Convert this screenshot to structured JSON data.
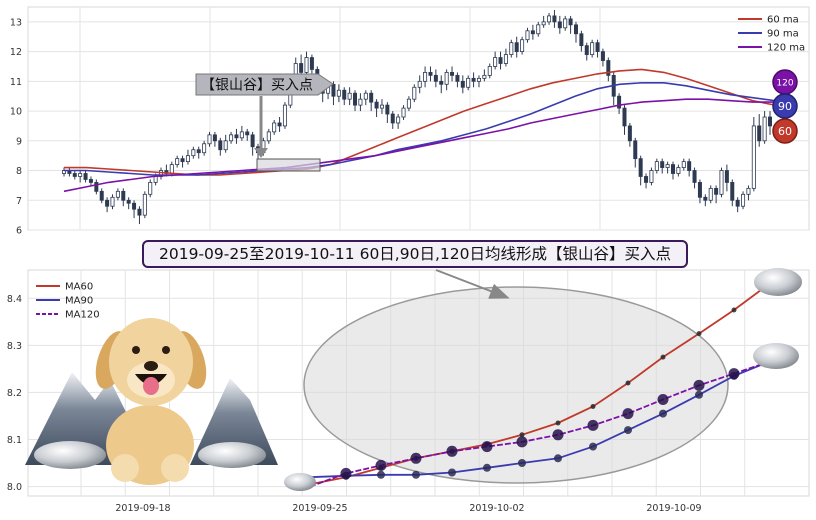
{
  "top_chart": {
    "legend": [
      {
        "label": "60 ma",
        "color": "#c0392b"
      },
      {
        "label": "90 ma",
        "color": "#3b3bb0"
      },
      {
        "label": "120 ma",
        "color": "#7b12a8"
      }
    ],
    "callout_label": "【银山谷】买入点",
    "badges": [
      "120",
      "90",
      "60"
    ]
  },
  "banner": "2019-09-25至2019-10-11 60日,90日,120日均线形成【银山谷】买入点",
  "bottom_chart": {
    "legend": [
      {
        "label": "MA60",
        "color": "#c0392b"
      },
      {
        "label": "MA90",
        "color": "#3b3bb0"
      },
      {
        "label": "MA120",
        "color": "#7b12a8"
      }
    ],
    "x_tick_labels": [
      "2019-09-18",
      "2019-09-25",
      "2019-10-02",
      "2019-10-09"
    ]
  },
  "chart_data": [
    {
      "type": "candlestick",
      "ylim": [
        6,
        13.5
      ],
      "yticks": [
        6,
        7,
        8,
        9,
        10,
        11,
        12,
        13
      ],
      "grid": true,
      "legend_placement": "top-right",
      "series": [
        {
          "name": "60 ma",
          "color": "#c0392b",
          "values": [
            8.1,
            8.1,
            8.05,
            8.0,
            7.95,
            7.9,
            7.85,
            7.85,
            7.9,
            7.95,
            8.0,
            8.05,
            8.2,
            8.5,
            8.8,
            9.1,
            9.4,
            9.7,
            10.0,
            10.25,
            10.5,
            10.75,
            10.95,
            11.1,
            11.25,
            11.35,
            11.4,
            11.3,
            11.1,
            10.85,
            10.6,
            10.35,
            10.2
          ]
        },
        {
          "name": "90 ma",
          "color": "#3b3bb0",
          "values": [
            8.0,
            8.0,
            7.95,
            7.9,
            7.85,
            7.85,
            7.85,
            7.9,
            7.95,
            8.0,
            8.05,
            8.1,
            8.2,
            8.35,
            8.5,
            8.7,
            8.85,
            9.0,
            9.2,
            9.4,
            9.65,
            9.9,
            10.2,
            10.5,
            10.75,
            10.9,
            10.95,
            10.95,
            10.85,
            10.7,
            10.55,
            10.45,
            10.35
          ]
        },
        {
          "name": "120 ma",
          "color": "#7b12a8",
          "values": [
            7.3,
            7.45,
            7.6,
            7.7,
            7.8,
            7.85,
            7.9,
            7.95,
            8.0,
            8.05,
            8.1,
            8.2,
            8.3,
            8.4,
            8.5,
            8.65,
            8.8,
            8.95,
            9.1,
            9.25,
            9.4,
            9.6,
            9.75,
            9.9,
            10.05,
            10.2,
            10.3,
            10.35,
            10.4,
            10.4,
            10.35,
            10.3,
            10.3
          ]
        }
      ],
      "candles": [
        [
          7.9,
          8.0,
          7.8,
          8.1
        ],
        [
          8.0,
          7.9,
          7.8,
          8.1
        ],
        [
          7.9,
          7.8,
          7.7,
          8.0
        ],
        [
          7.8,
          7.9,
          7.6,
          8.0
        ],
        [
          7.9,
          7.7,
          7.6,
          8.0
        ],
        [
          7.7,
          7.6,
          7.5,
          7.8
        ],
        [
          7.6,
          7.3,
          7.2,
          7.7
        ],
        [
          7.3,
          7.0,
          6.9,
          7.4
        ],
        [
          7.0,
          6.8,
          6.6,
          7.1
        ],
        [
          6.8,
          7.1,
          6.7,
          7.2
        ],
        [
          7.1,
          7.3,
          7.0,
          7.4
        ],
        [
          7.3,
          7.0,
          6.8,
          7.4
        ],
        [
          7.0,
          6.9,
          6.7,
          7.1
        ],
        [
          6.9,
          6.7,
          6.4,
          7.0
        ],
        [
          6.7,
          6.5,
          6.2,
          6.8
        ],
        [
          6.5,
          7.2,
          6.4,
          7.3
        ],
        [
          7.2,
          7.6,
          7.1,
          7.7
        ],
        [
          7.6,
          7.8,
          7.5,
          7.9
        ],
        [
          7.8,
          8.0,
          7.7,
          8.1
        ],
        [
          8.0,
          7.9,
          7.8,
          8.2
        ],
        [
          7.9,
          8.2,
          7.8,
          8.3
        ],
        [
          8.2,
          8.4,
          8.1,
          8.5
        ],
        [
          8.4,
          8.3,
          8.1,
          8.5
        ],
        [
          8.3,
          8.5,
          8.2,
          8.7
        ],
        [
          8.5,
          8.7,
          8.4,
          8.8
        ],
        [
          8.7,
          8.6,
          8.4,
          8.8
        ],
        [
          8.6,
          8.9,
          8.5,
          9.0
        ],
        [
          8.9,
          9.2,
          8.8,
          9.3
        ],
        [
          9.2,
          9.0,
          8.8,
          9.3
        ],
        [
          9.0,
          8.7,
          8.5,
          9.1
        ],
        [
          8.7,
          9.0,
          8.6,
          9.2
        ],
        [
          9.0,
          9.2,
          8.9,
          9.3
        ],
        [
          9.2,
          9.1,
          8.9,
          9.4
        ],
        [
          9.1,
          9.3,
          9.0,
          9.5
        ],
        [
          9.3,
          9.2,
          9.0,
          9.4
        ],
        [
          9.2,
          8.8,
          8.5,
          9.3
        ],
        [
          8.8,
          8.6,
          8.4,
          8.9
        ],
        [
          8.6,
          9.0,
          8.5,
          9.1
        ],
        [
          9.0,
          9.3,
          8.9,
          9.4
        ],
        [
          9.3,
          9.6,
          9.2,
          9.7
        ],
        [
          9.6,
          9.5,
          9.3,
          9.8
        ],
        [
          9.5,
          10.2,
          9.4,
          10.3
        ],
        [
          10.2,
          10.9,
          10.1,
          11.0
        ],
        [
          10.9,
          11.6,
          10.8,
          11.8
        ],
        [
          11.6,
          11.3,
          11.0,
          11.9
        ],
        [
          11.3,
          11.8,
          11.2,
          12.0
        ],
        [
          11.8,
          11.4,
          11.0,
          11.9
        ],
        [
          11.4,
          10.8,
          10.6,
          11.5
        ],
        [
          10.8,
          10.6,
          10.3,
          10.9
        ],
        [
          10.6,
          10.9,
          10.4,
          11.0
        ],
        [
          10.9,
          10.5,
          10.2,
          11.0
        ],
        [
          10.5,
          10.7,
          10.3,
          10.9
        ],
        [
          10.7,
          10.4,
          10.2,
          10.8
        ],
        [
          10.4,
          10.6,
          10.2,
          10.8
        ],
        [
          10.6,
          10.2,
          10.0,
          10.7
        ],
        [
          10.2,
          10.4,
          10.0,
          10.6
        ],
        [
          10.4,
          10.6,
          10.2,
          10.7
        ],
        [
          10.6,
          10.3,
          10.0,
          10.7
        ],
        [
          10.3,
          10.1,
          9.8,
          10.4
        ],
        [
          10.1,
          10.2,
          9.9,
          10.4
        ],
        [
          10.2,
          9.9,
          9.6,
          10.3
        ],
        [
          9.9,
          9.6,
          9.4,
          10.0
        ],
        [
          9.6,
          9.8,
          9.4,
          9.9
        ],
        [
          9.8,
          10.1,
          9.7,
          10.2
        ],
        [
          10.1,
          10.4,
          10.0,
          10.5
        ],
        [
          10.4,
          10.8,
          10.3,
          10.9
        ],
        [
          10.8,
          11.0,
          10.6,
          11.2
        ],
        [
          11.0,
          11.3,
          10.8,
          11.5
        ],
        [
          11.3,
          11.2,
          11.0,
          11.5
        ],
        [
          11.2,
          11.0,
          10.8,
          11.4
        ],
        [
          11.0,
          10.9,
          10.6,
          11.2
        ],
        [
          10.9,
          11.3,
          10.7,
          11.4
        ],
        [
          11.3,
          11.2,
          11.0,
          11.5
        ],
        [
          11.2,
          11.0,
          10.8,
          11.3
        ],
        [
          11.0,
          10.8,
          10.6,
          11.2
        ],
        [
          10.8,
          11.1,
          10.7,
          11.2
        ],
        [
          11.1,
          11.0,
          10.8,
          11.3
        ],
        [
          11.0,
          11.1,
          10.8,
          11.2
        ],
        [
          11.1,
          11.2,
          11.0,
          11.4
        ],
        [
          11.2,
          11.5,
          11.1,
          11.6
        ],
        [
          11.5,
          11.8,
          11.4,
          12.0
        ],
        [
          11.8,
          11.6,
          11.4,
          12.0
        ],
        [
          11.6,
          11.9,
          11.5,
          12.1
        ],
        [
          11.9,
          12.3,
          11.8,
          12.4
        ],
        [
          12.3,
          12.0,
          11.8,
          12.5
        ],
        [
          12.0,
          12.4,
          11.9,
          12.5
        ],
        [
          12.4,
          12.7,
          12.3,
          12.8
        ],
        [
          12.7,
          12.6,
          12.4,
          12.9
        ],
        [
          12.6,
          12.9,
          12.5,
          13.0
        ],
        [
          12.9,
          13.0,
          12.8,
          13.2
        ],
        [
          13.0,
          13.2,
          12.9,
          13.3
        ],
        [
          13.2,
          13.0,
          12.8,
          13.4
        ],
        [
          13.0,
          12.8,
          12.6,
          13.2
        ],
        [
          12.8,
          13.1,
          12.7,
          13.2
        ],
        [
          13.1,
          12.9,
          12.6,
          13.2
        ],
        [
          12.9,
          12.6,
          12.3,
          13.0
        ],
        [
          12.6,
          12.2,
          12.0,
          12.7
        ],
        [
          12.2,
          11.9,
          11.7,
          12.3
        ],
        [
          11.9,
          12.3,
          11.8,
          12.4
        ],
        [
          12.3,
          12.0,
          11.8,
          12.4
        ],
        [
          12.0,
          11.7,
          11.5,
          12.1
        ],
        [
          11.7,
          11.2,
          11.0,
          11.8
        ],
        [
          11.2,
          10.5,
          10.2,
          11.3
        ],
        [
          10.5,
          10.1,
          9.9,
          10.6
        ],
        [
          10.1,
          9.5,
          9.2,
          10.2
        ],
        [
          9.5,
          9.0,
          8.8,
          9.6
        ],
        [
          9.0,
          8.4,
          8.1,
          9.1
        ],
        [
          8.4,
          7.8,
          7.5,
          8.5
        ],
        [
          7.8,
          7.6,
          7.4,
          7.9
        ],
        [
          7.6,
          8.0,
          7.5,
          8.1
        ],
        [
          8.0,
          8.3,
          7.9,
          8.4
        ],
        [
          8.3,
          8.1,
          7.9,
          8.4
        ],
        [
          8.1,
          8.2,
          7.9,
          8.3
        ],
        [
          8.2,
          7.9,
          7.7,
          8.3
        ],
        [
          7.9,
          8.1,
          7.8,
          8.2
        ],
        [
          8.1,
          8.3,
          8.0,
          8.4
        ],
        [
          8.3,
          8.0,
          7.8,
          8.4
        ],
        [
          8.0,
          7.6,
          7.4,
          8.1
        ],
        [
          7.6,
          7.1,
          6.9,
          7.7
        ],
        [
          7.1,
          7.0,
          6.8,
          7.2
        ],
        [
          7.0,
          7.4,
          6.9,
          7.5
        ],
        [
          7.4,
          7.2,
          6.9,
          7.5
        ],
        [
          7.2,
          8.0,
          7.1,
          8.1
        ],
        [
          8.0,
          7.6,
          7.3,
          8.2
        ],
        [
          7.6,
          7.0,
          6.8,
          7.7
        ],
        [
          7.0,
          6.8,
          6.6,
          7.1
        ],
        [
          6.8,
          7.2,
          6.7,
          7.3
        ],
        [
          7.2,
          7.4,
          7.0,
          7.5
        ],
        [
          7.4,
          9.5,
          7.3,
          9.8
        ],
        [
          9.5,
          9.0,
          8.8,
          9.9
        ],
        [
          9.0,
          9.8,
          8.9,
          10.0
        ],
        [
          9.8,
          9.5,
          9.2,
          10.0
        ]
      ]
    },
    {
      "type": "line",
      "ylim": [
        7.98,
        8.46
      ],
      "yticks": [
        8.0,
        8.1,
        8.2,
        8.3,
        8.4
      ],
      "grid": true,
      "legend_placement": "top-left",
      "series": [
        {
          "name": "MA60",
          "color": "#c0392b",
          "values": [
            8.005,
            8.02,
            8.04,
            8.06,
            8.075,
            8.09,
            8.11,
            8.135,
            8.17,
            8.22,
            8.275,
            8.325,
            8.375,
            8.43
          ]
        },
        {
          "name": "MA90",
          "color": "#3b3bb0",
          "values": [
            8.02,
            8.023,
            8.025,
            8.025,
            8.03,
            8.04,
            8.05,
            8.06,
            8.085,
            8.12,
            8.155,
            8.195,
            8.235,
            8.265
          ]
        },
        {
          "name": "MA120",
          "color": "#7b12a8",
          "values": [
            8.0,
            8.028,
            8.045,
            8.06,
            8.075,
            8.085,
            8.095,
            8.11,
            8.13,
            8.155,
            8.185,
            8.215,
            8.24,
            8.265
          ]
        }
      ],
      "x_dates": [
        "2019-09-24",
        "2019-09-25",
        "2019-09-26",
        "2019-09-27",
        "2019-09-30",
        "2019-10-01",
        "2019-10-02",
        "2019-10-03",
        "2019-10-04",
        "2019-10-07",
        "2019-10-08",
        "2019-10-09",
        "2019-10-10",
        "2019-10-11"
      ]
    }
  ]
}
